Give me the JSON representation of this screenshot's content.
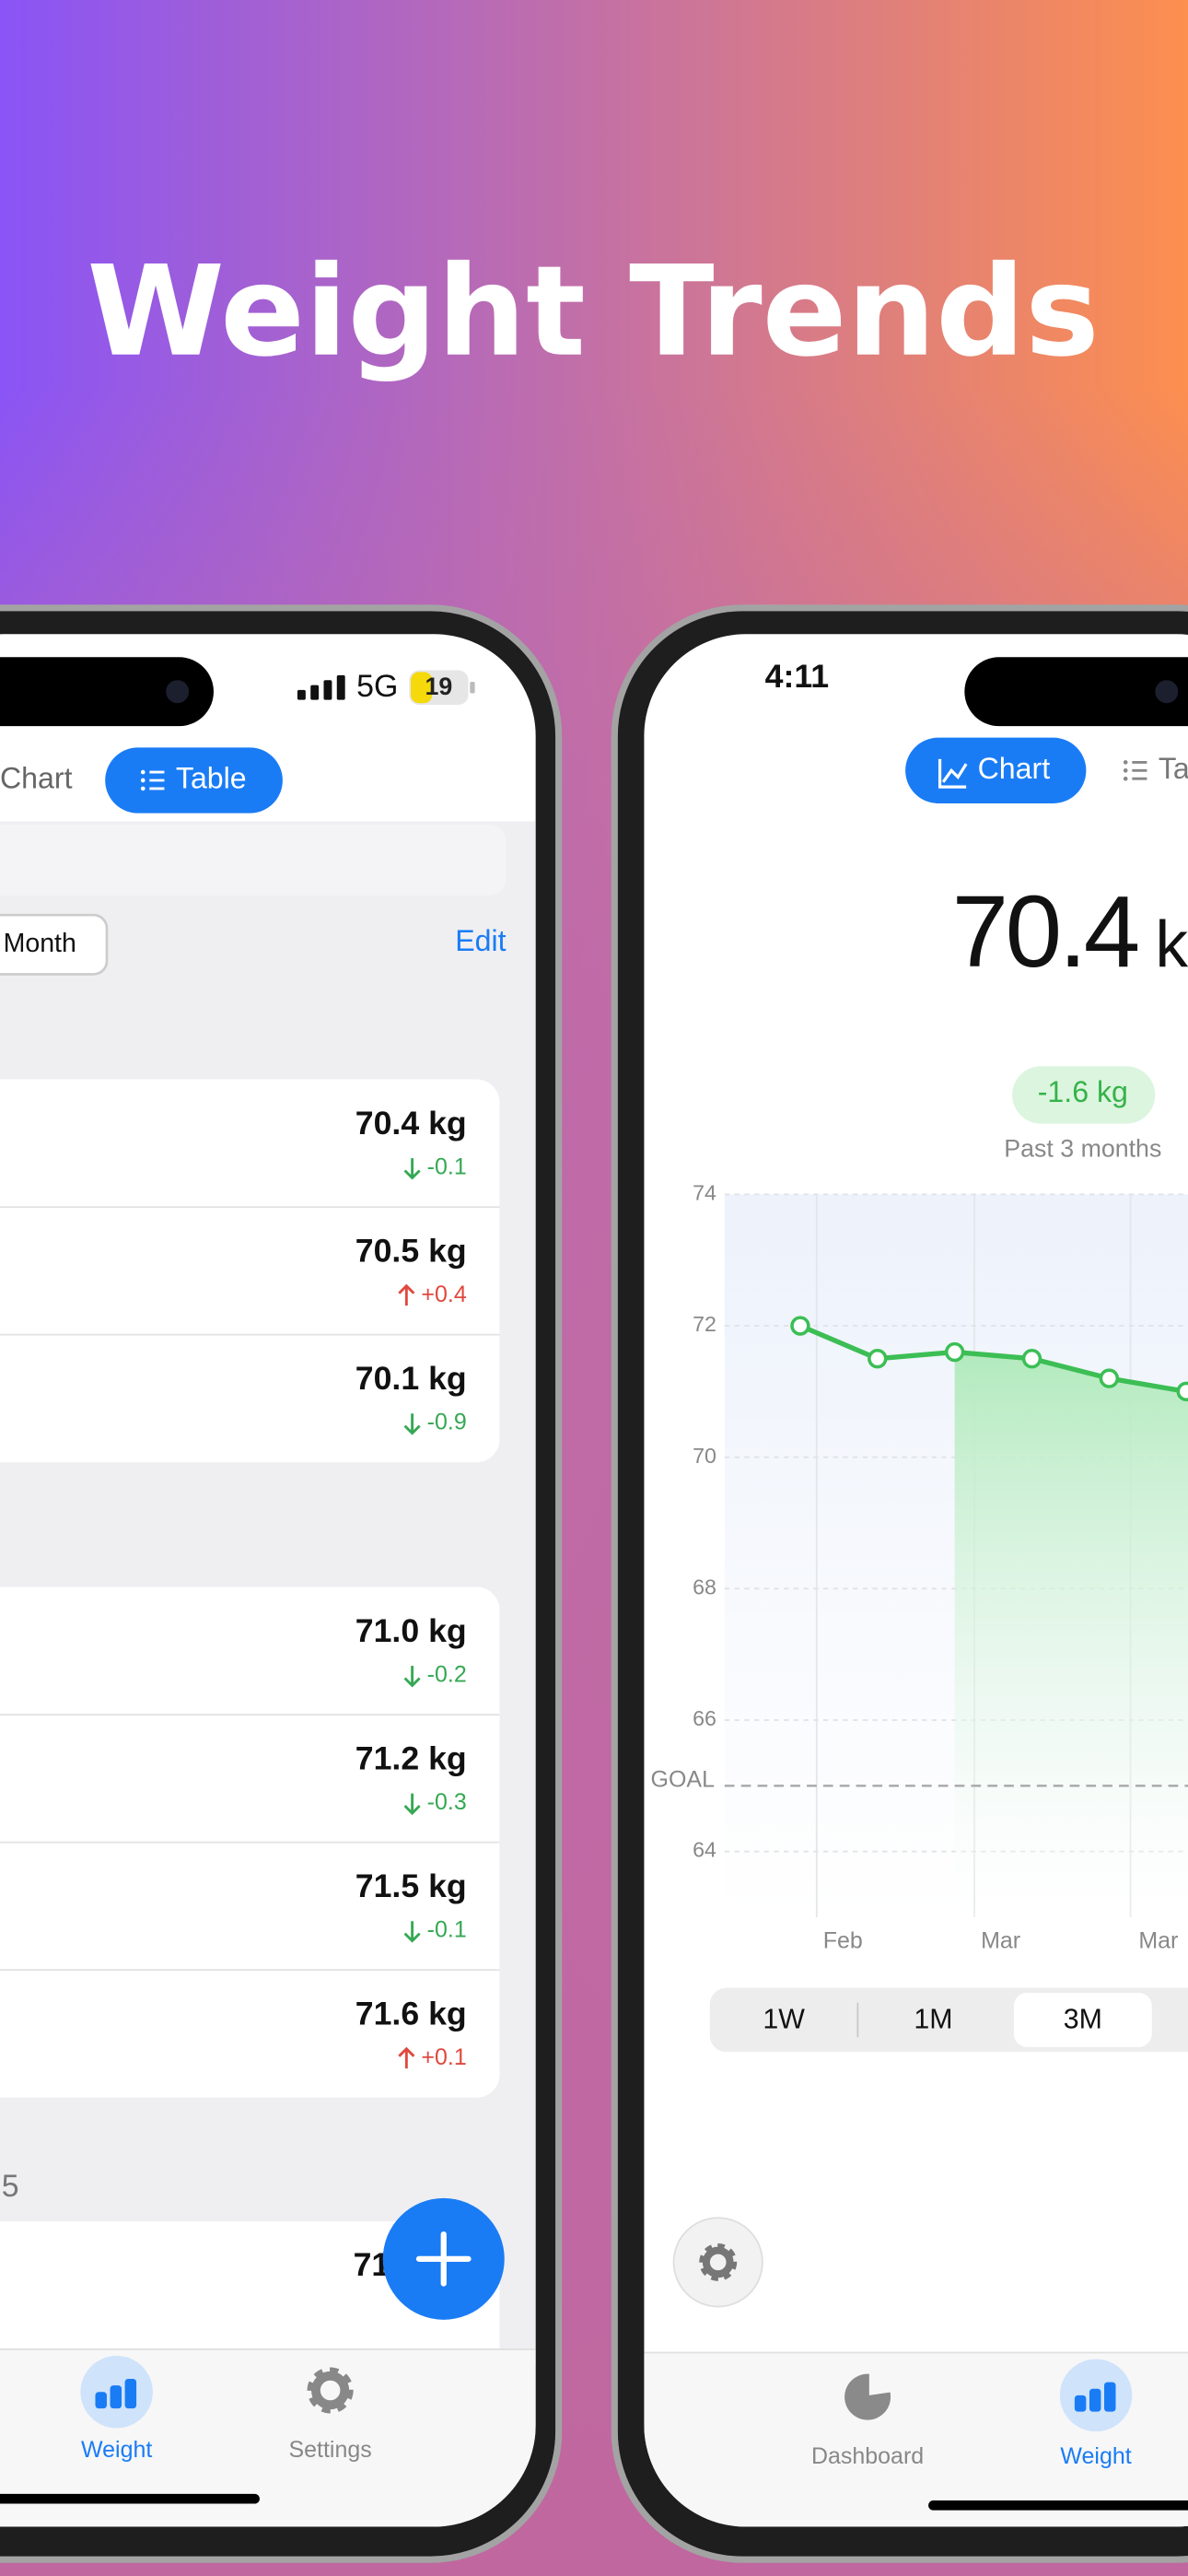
{
  "header": {
    "title": "Weight Trends"
  },
  "left_phone": {
    "status": {
      "network": "5G",
      "battery": "19"
    },
    "tabs": [
      "Chart",
      "Table"
    ],
    "active_tab": 1,
    "filter": "Month",
    "edit": "Edit",
    "groups": [
      {
        "entries": [
          {
            "weight": "70.4 kg",
            "change": "-0.1",
            "direction": "down"
          },
          {
            "weight": "70.5 kg",
            "change": "+0.4",
            "direction": "up"
          },
          {
            "weight": "70.1 kg",
            "change": "-0.9",
            "direction": "down"
          }
        ]
      },
      {
        "entries": [
          {
            "weight": "71.0 kg",
            "change": "-0.2",
            "direction": "down"
          },
          {
            "weight": "71.2 kg",
            "change": "-0.3",
            "direction": "down"
          },
          {
            "weight": "71.5 kg",
            "change": "-0.1",
            "direction": "down"
          },
          {
            "weight": "71.6 kg",
            "change": "+0.1",
            "direction": "up"
          }
        ]
      }
    ],
    "partial_section": "5",
    "partial_entry": "71",
    "tab_bar": [
      "Weight",
      "Settings"
    ],
    "active_tab_bar": 0
  },
  "right_phone": {
    "time": "4:11",
    "tabs": [
      "Chart",
      "Ta"
    ],
    "active_tab": 0,
    "current_weight": "70.4",
    "unit": "kg",
    "change": "-1.6 kg",
    "period": "Past 3 months",
    "chart": {
      "type": "line",
      "ylim": [
        63,
        74
      ],
      "yticks": [
        64,
        66,
        68,
        70,
        72,
        74
      ],
      "goal": 65,
      "goal_label": "GOAL",
      "x_labels": [
        "Feb",
        "Mar",
        "Mar"
      ],
      "values": [
        72.0,
        71.5,
        71.6,
        71.5,
        71.2,
        71.0
      ],
      "color": "#3cbe55",
      "grid": true
    },
    "ranges": [
      "1W",
      "1M",
      "3M"
    ],
    "selected_range": 2,
    "tab_bar": [
      "Dashboard",
      "Weight"
    ],
    "active_tab_bar": 1
  }
}
